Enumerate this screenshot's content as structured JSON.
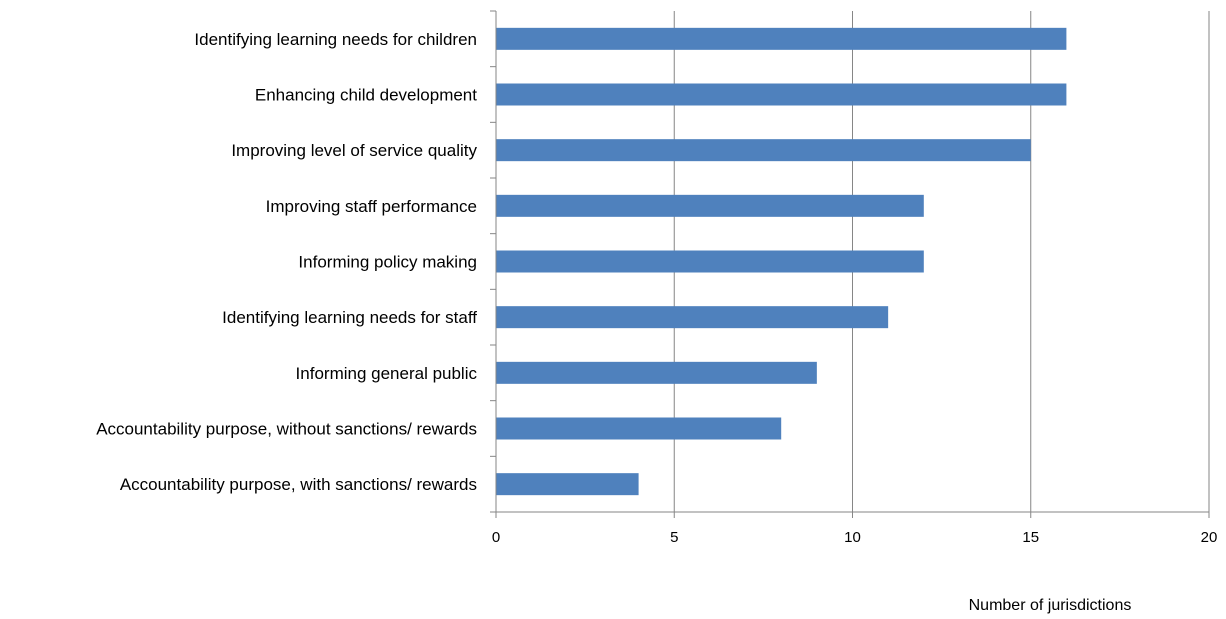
{
  "chart_data": {
    "type": "bar",
    "orientation": "horizontal",
    "categories": [
      "Identifying learning needs for children",
      "Enhancing child development",
      "Improving level of service quality",
      "Improving staff performance",
      "Informing policy making",
      "Identifying learning needs for staff",
      "Informing general public",
      "Accountability purpose, without sanctions/ rewards",
      "Accountability purpose, with sanctions/ rewards"
    ],
    "values": [
      16,
      16,
      15,
      12,
      12,
      11,
      9,
      8,
      4
    ],
    "xlabel": "Number of jurisdictions",
    "xlim": [
      0,
      20
    ],
    "xticks": [
      0,
      5,
      10,
      15,
      20
    ],
    "xtick_labels": [
      "0",
      "5",
      "10",
      "15",
      "20"
    ],
    "grid": "vertical gridlines on",
    "legend": "none",
    "bar_color": "#4F81BD",
    "grid_color": "#868686",
    "axis_color": "#868686"
  }
}
